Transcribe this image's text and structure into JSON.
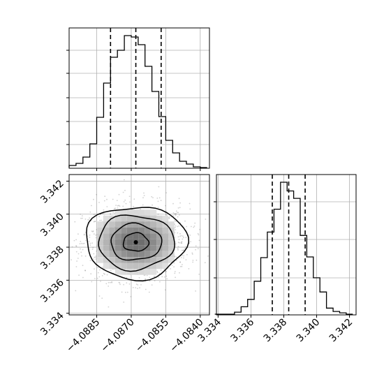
{
  "chart_data": {
    "type": "corner",
    "parameters": [
      {
        "mean": -4.0868,
        "std": 0.0011,
        "range": [
          -4.0897,
          -4.0836
        ]
      },
      {
        "mean": 3.3383,
        "std": 0.0011,
        "range": [
          3.3339,
          3.3424
        ]
      }
    ],
    "quantiles": [
      0.16,
      0.5,
      0.84
    ],
    "x_ticks": [
      {
        "value": -4.0885,
        "label": "−4.0885"
      },
      {
        "value": -4.087,
        "label": "−4.0870"
      },
      {
        "value": -4.0855,
        "label": "−4.0855"
      },
      {
        "value": -4.084,
        "label": "−4.0840"
      }
    ],
    "y_ticks": [
      {
        "value": 3.334,
        "label": "3.334"
      },
      {
        "value": 3.336,
        "label": "3.336"
      },
      {
        "value": 3.338,
        "label": "3.338"
      },
      {
        "value": 3.34,
        "label": "3.340"
      },
      {
        "value": 3.342,
        "label": "3.342"
      }
    ],
    "marginal_x": {
      "bin_edges": [
        -4.0897,
        -4.0894,
        -4.0891,
        -4.0888,
        -4.0885,
        -4.0882,
        -4.0879,
        -4.0876,
        -4.0873,
        -4.087,
        -4.0867,
        -4.0864,
        -4.0861,
        -4.0858,
        -4.0855,
        -4.0852,
        -4.0849,
        -4.0846,
        -4.0843,
        -4.084,
        -4.0837
      ],
      "counts": [
        3,
        6,
        15,
        34,
        72,
        121,
        158,
        168,
        189,
        187,
        176,
        145,
        109,
        73,
        39,
        21,
        9,
        5,
        1,
        0
      ],
      "quantile_values": [
        -4.0879,
        -4.0868,
        -4.0857
      ]
    },
    "marginal_y": {
      "bin_edges": [
        3.3338,
        3.3342,
        3.3346,
        3.335,
        3.3354,
        3.3358,
        3.3362,
        3.3366,
        3.337,
        3.3374,
        3.3378,
        3.3382,
        3.3386,
        3.339,
        3.3394,
        3.3398,
        3.3402,
        3.3406,
        3.341,
        3.3414,
        3.3418,
        3.3422
      ],
      "counts": [
        0,
        0,
        0,
        3,
        11,
        22,
        49,
        84,
        122,
        156,
        196,
        183,
        172,
        117,
        85,
        54,
        33,
        9,
        4,
        2,
        0
      ],
      "quantile_values": [
        3.3373,
        3.3383,
        3.3393
      ]
    }
  }
}
